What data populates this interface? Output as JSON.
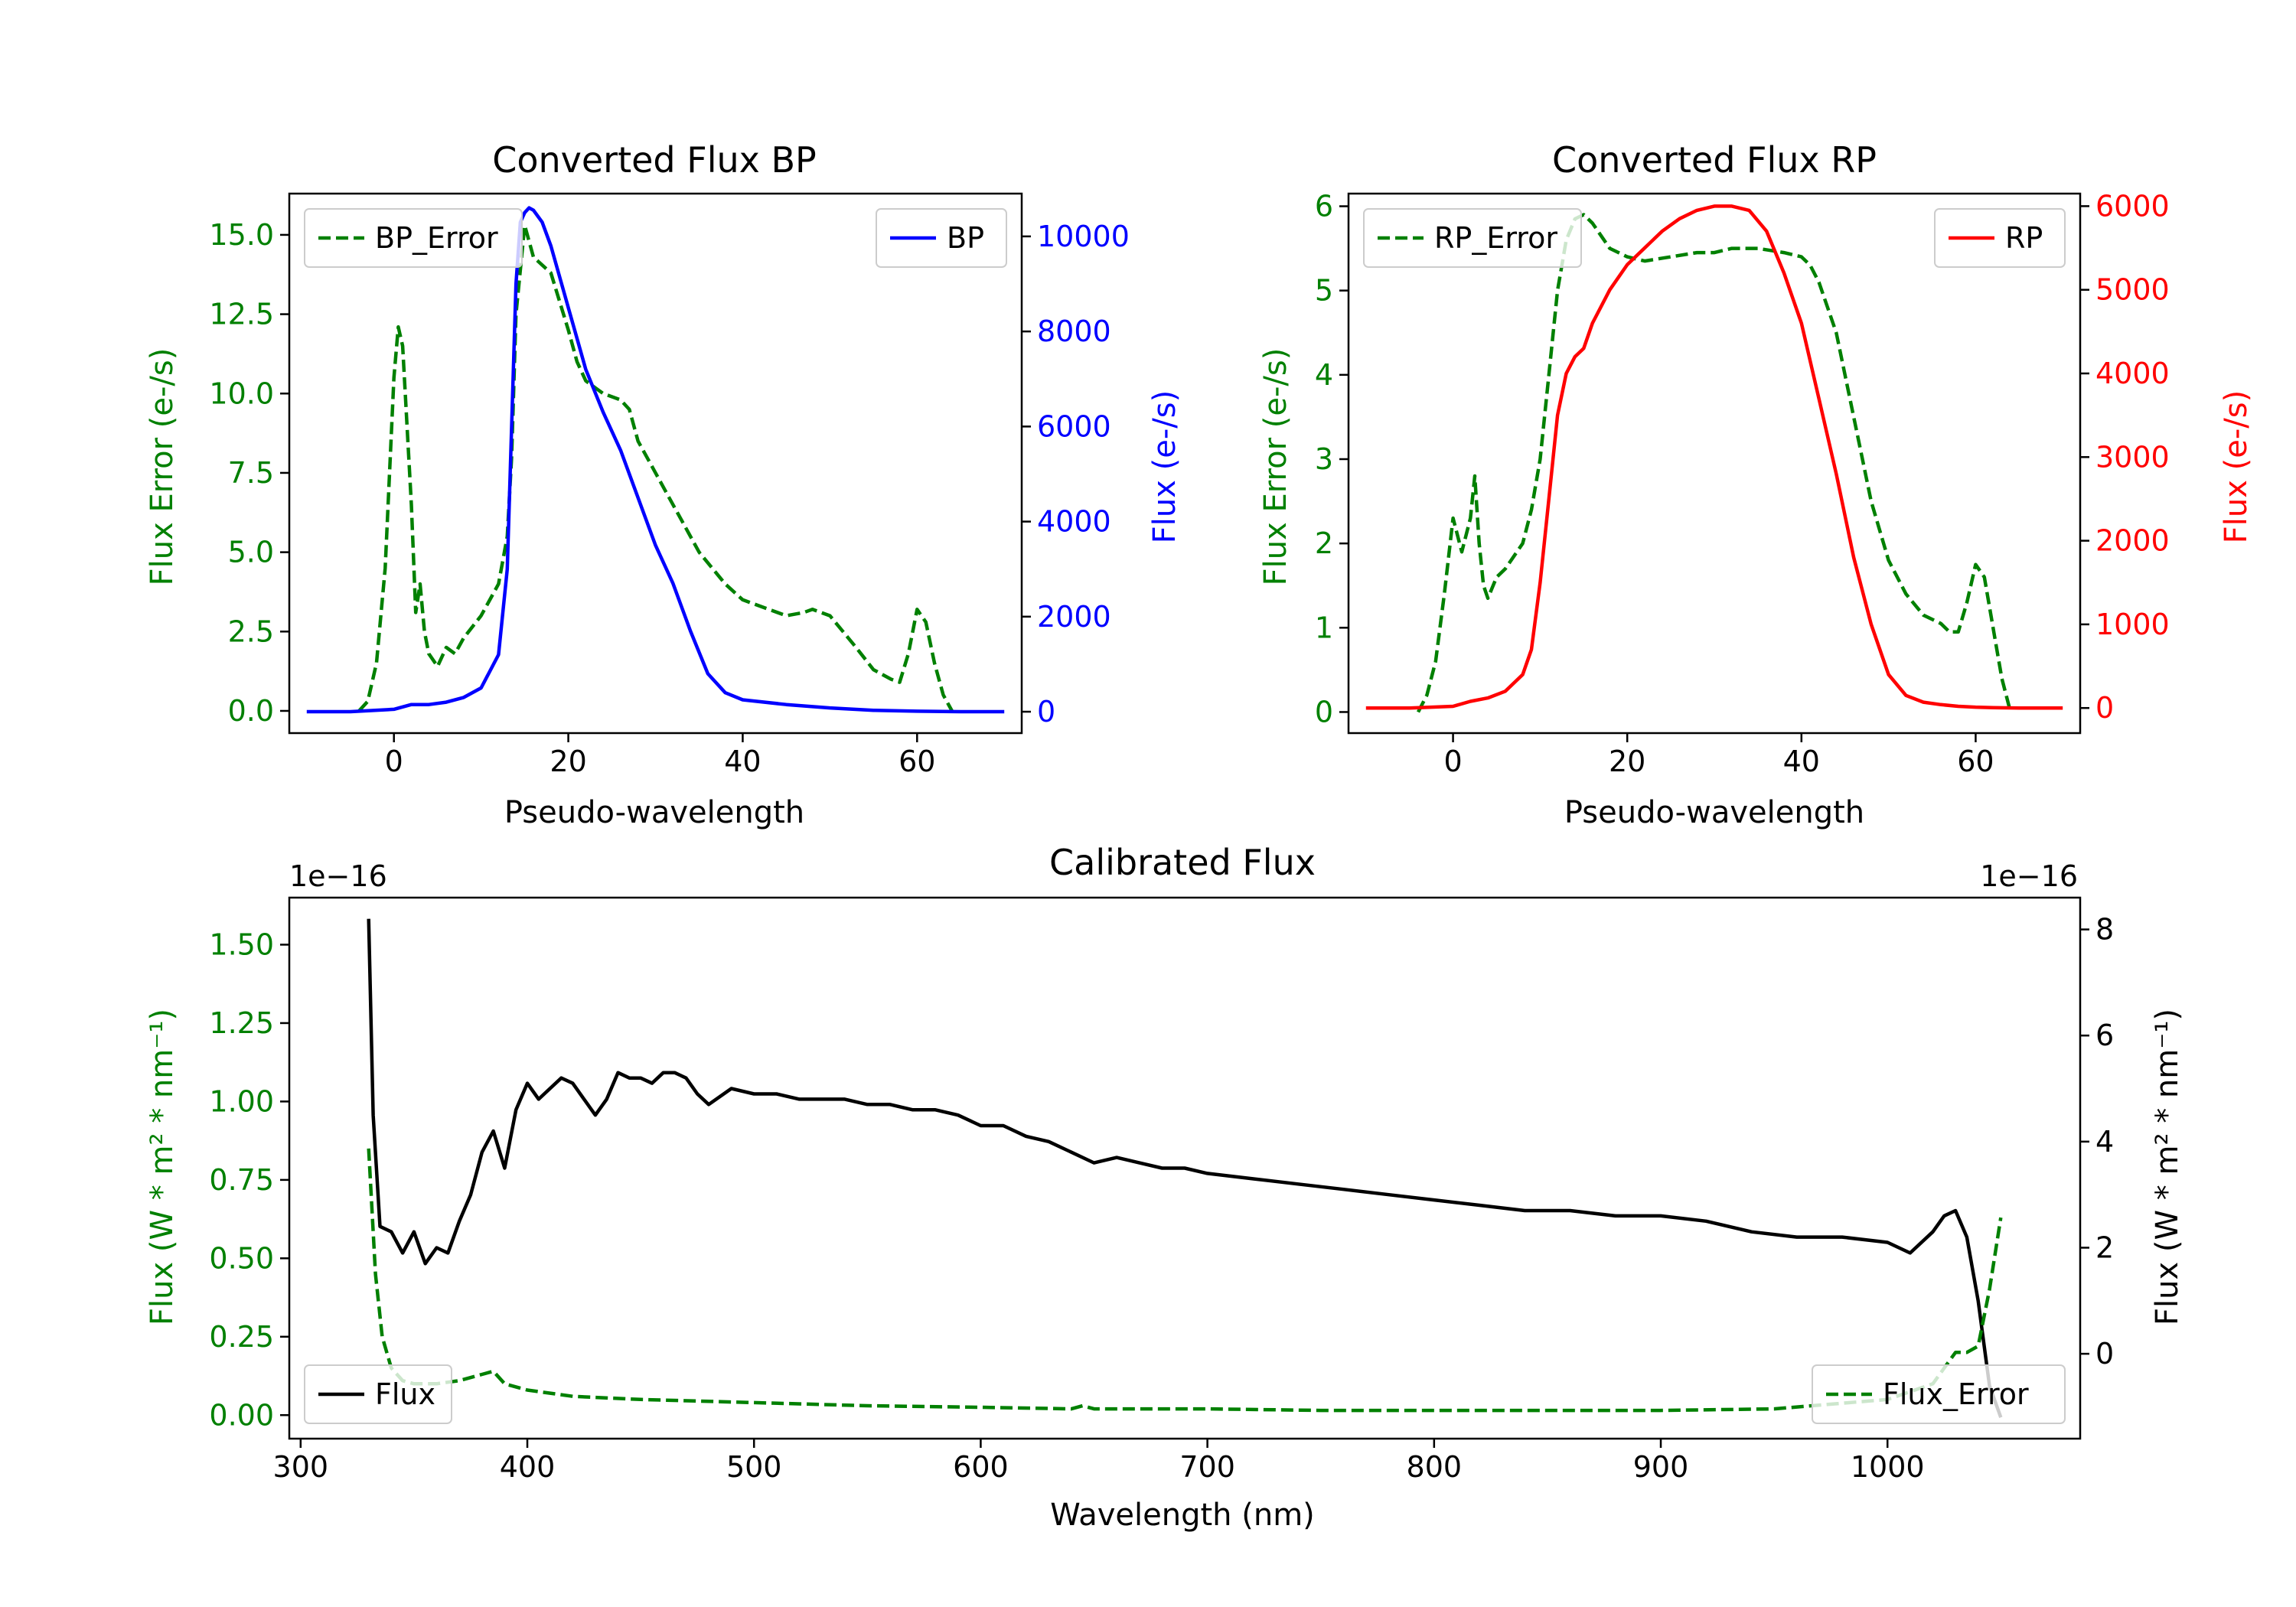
{
  "chart_data": [
    {
      "type": "line",
      "title": "Converted Flux BP",
      "xlabel": "Pseudo-wavelength",
      "xlim": [
        -12,
        72
      ],
      "xticks": [
        "0",
        "20",
        "40",
        "60"
      ],
      "left_axis": {
        "label": "Flux Error (e-/s)",
        "color": "#008000",
        "ylim": [
          -0.7,
          16.3
        ],
        "ticks": [
          "0.0",
          "2.5",
          "5.0",
          "7.5",
          "10.0",
          "12.5",
          "15.0"
        ]
      },
      "right_axis": {
        "label": "Flux (e-/s)",
        "color": "#0000ff",
        "ylim": [
          -450,
          10900
        ],
        "ticks": [
          "0",
          "2000",
          "4000",
          "6000",
          "8000",
          "10000"
        ]
      },
      "series": [
        {
          "name": "BP_Error",
          "axis": "left",
          "style": "dashed",
          "color": "#008000",
          "legend_position": "upper left",
          "x": [
            -4,
            -3,
            -2,
            -1,
            0,
            0.5,
            1,
            2,
            2.5,
            3,
            3.5,
            4,
            5,
            6,
            7,
            8,
            10,
            12,
            13,
            13.5,
            14,
            15,
            16,
            18,
            20,
            21,
            22,
            24,
            26,
            27,
            28,
            30,
            31,
            33,
            35,
            38,
            40,
            43,
            45,
            47,
            48,
            50,
            53,
            55,
            57,
            58,
            59,
            60,
            61,
            62,
            63,
            64
          ],
          "y": [
            0,
            0.3,
            1.5,
            4.5,
            10.5,
            12.1,
            11.5,
            6.5,
            3.1,
            4.0,
            2.5,
            1.8,
            1.4,
            2.0,
            1.8,
            2.3,
            3.0,
            4.0,
            5.5,
            8.0,
            12.5,
            15.3,
            14.3,
            13.8,
            12.0,
            11.0,
            10.4,
            10.0,
            9.8,
            9.5,
            8.5,
            7.5,
            7.0,
            6.0,
            5.0,
            4.0,
            3.5,
            3.2,
            3.0,
            3.1,
            3.2,
            3.0,
            2.0,
            1.3,
            1.0,
            0.9,
            1.8,
            3.2,
            2.8,
            1.5,
            0.5,
            0
          ]
        },
        {
          "name": "BP",
          "axis": "right",
          "style": "solid",
          "color": "#0000ff",
          "legend_position": "upper right",
          "x": [
            -10,
            -5,
            0,
            2,
            4,
            6,
            8,
            10,
            12,
            13,
            13.5,
            14,
            14.5,
            15,
            15.5,
            16,
            17,
            18,
            20,
            22,
            24,
            26,
            28,
            30,
            32,
            34,
            36,
            38,
            40,
            45,
            50,
            55,
            60,
            65,
            70
          ],
          "y": [
            0,
            0,
            50,
            150,
            150,
            200,
            300,
            500,
            1200,
            3000,
            6000,
            9000,
            10300,
            10500,
            10600,
            10550,
            10300,
            9800,
            8500,
            7200,
            6300,
            5500,
            4500,
            3500,
            2700,
            1700,
            800,
            400,
            250,
            150,
            80,
            30,
            10,
            0,
            0
          ]
        }
      ],
      "legend": [
        "BP_Error",
        "BP"
      ]
    },
    {
      "type": "line",
      "title": "Converted Flux RP",
      "xlabel": "Pseudo-wavelength",
      "xlim": [
        -12,
        72
      ],
      "xticks": [
        "0",
        "20",
        "40",
        "60"
      ],
      "left_axis": {
        "label": "Flux Error (e-/s)",
        "color": "#008000",
        "ylim": [
          -0.25,
          6.15
        ],
        "ticks": [
          "0",
          "1",
          "2",
          "3",
          "4",
          "5",
          "6"
        ]
      },
      "right_axis": {
        "label": "Flux (e-/s)",
        "color": "#ff0000",
        "ylim": [
          -300,
          6150
        ],
        "ticks": [
          "0",
          "1000",
          "2000",
          "3000",
          "4000",
          "5000",
          "6000"
        ]
      },
      "series": [
        {
          "name": "RP_Error",
          "axis": "left",
          "style": "dashed",
          "color": "#008000",
          "legend_position": "upper left",
          "x": [
            -4,
            -3,
            -2,
            -1,
            0,
            1,
            2,
            2.5,
            3,
            3.5,
            4,
            5,
            6,
            8,
            9,
            10,
            11,
            12,
            13,
            14,
            15,
            16,
            18,
            20,
            22,
            25,
            28,
            30,
            32,
            35,
            38,
            40,
            41,
            42,
            44,
            46,
            48,
            50,
            52,
            54,
            56,
            57,
            58,
            59,
            60,
            61,
            62,
            63,
            64
          ],
          "y": [
            0,
            0.2,
            0.6,
            1.4,
            2.3,
            1.9,
            2.3,
            2.8,
            2.0,
            1.5,
            1.35,
            1.6,
            1.7,
            2.0,
            2.4,
            3.0,
            4.0,
            5.0,
            5.6,
            5.85,
            5.9,
            5.8,
            5.5,
            5.4,
            5.35,
            5.4,
            5.45,
            5.45,
            5.5,
            5.5,
            5.45,
            5.4,
            5.3,
            5.1,
            4.5,
            3.5,
            2.5,
            1.8,
            1.4,
            1.15,
            1.05,
            0.95,
            0.95,
            1.3,
            1.75,
            1.6,
            1.0,
            0.4,
            0
          ]
        },
        {
          "name": "RP",
          "axis": "right",
          "style": "solid",
          "color": "#ff0000",
          "legend_position": "upper right",
          "x": [
            -10,
            -5,
            0,
            2,
            4,
            6,
            8,
            9,
            10,
            11,
            12,
            13,
            14,
            15,
            16,
            18,
            20,
            22,
            24,
            26,
            28,
            30,
            32,
            34,
            36,
            38,
            40,
            42,
            44,
            46,
            48,
            50,
            52,
            54,
            56,
            58,
            60,
            62,
            65,
            70
          ],
          "y": [
            0,
            0,
            20,
            80,
            120,
            200,
            400,
            700,
            1500,
            2500,
            3500,
            4000,
            4200,
            4300,
            4600,
            5000,
            5300,
            5500,
            5700,
            5850,
            5950,
            6000,
            6000,
            5950,
            5700,
            5200,
            4600,
            3700,
            2800,
            1800,
            1000,
            400,
            150,
            70,
            40,
            20,
            10,
            5,
            0,
            0
          ]
        }
      ],
      "legend": [
        "RP_Error",
        "RP"
      ]
    },
    {
      "type": "line",
      "title": "Calibrated Flux",
      "xlabel": "Wavelength (nm)",
      "xlim": [
        295,
        1085
      ],
      "xticks": [
        "300",
        "400",
        "500",
        "600",
        "700",
        "800",
        "900",
        "1000"
      ],
      "left_axis": {
        "label": "Flux (W * m² * nm⁻¹)",
        "color": "#008000",
        "offset_text": "1e−16",
        "ylim": [
          -0.075,
          1.65
        ],
        "ticks": [
          "0.00",
          "0.25",
          "0.50",
          "0.75",
          "1.00",
          "1.25",
          "1.50"
        ]
      },
      "right_axis": {
        "label": "Flux (W * m² * nm⁻¹)",
        "color": "#000000",
        "offset_text": "1e−16",
        "ylim": [
          -1.6,
          8.6
        ],
        "ticks": [
          "0",
          "2",
          "4",
          "6",
          "8"
        ]
      },
      "series": [
        {
          "name": "Flux",
          "axis": "right",
          "style": "solid",
          "color": "#000000",
          "legend_position": "lower left",
          "x": [
            330,
            332,
            335,
            340,
            345,
            350,
            355,
            360,
            365,
            370,
            375,
            380,
            385,
            390,
            395,
            400,
            405,
            410,
            415,
            420,
            425,
            430,
            435,
            440,
            445,
            450,
            455,
            460,
            465,
            470,
            475,
            480,
            490,
            500,
            510,
            520,
            530,
            540,
            550,
            560,
            570,
            580,
            590,
            600,
            610,
            620,
            630,
            640,
            650,
            660,
            670,
            680,
            690,
            700,
            720,
            740,
            760,
            780,
            800,
            820,
            840,
            860,
            880,
            900,
            920,
            940,
            960,
            980,
            1000,
            1010,
            1020,
            1025,
            1030,
            1035,
            1040,
            1045,
            1050
          ],
          "y": [
            8.2,
            4.5,
            2.4,
            2.3,
            1.9,
            2.3,
            1.7,
            2.0,
            1.9,
            2.5,
            3.0,
            3.8,
            4.2,
            3.5,
            4.6,
            5.1,
            4.8,
            5.0,
            5.2,
            5.1,
            4.8,
            4.5,
            4.8,
            5.3,
            5.2,
            5.2,
            5.1,
            5.3,
            5.3,
            5.2,
            4.9,
            4.7,
            5.0,
            4.9,
            4.9,
            4.8,
            4.8,
            4.8,
            4.7,
            4.7,
            4.6,
            4.6,
            4.5,
            4.3,
            4.3,
            4.1,
            4.0,
            3.8,
            3.6,
            3.7,
            3.6,
            3.5,
            3.5,
            3.4,
            3.3,
            3.2,
            3.1,
            3.0,
            2.9,
            2.8,
            2.7,
            2.7,
            2.6,
            2.6,
            2.5,
            2.3,
            2.2,
            2.2,
            2.1,
            1.9,
            2.3,
            2.6,
            2.7,
            2.2,
            1.0,
            -0.6,
            -1.2
          ]
        },
        {
          "name": "Flux_Error",
          "axis": "left",
          "style": "dashed",
          "color": "#008000",
          "legend_position": "lower right",
          "x": [
            330,
            333,
            336,
            340,
            345,
            350,
            360,
            370,
            380,
            385,
            390,
            400,
            420,
            450,
            500,
            550,
            600,
            640,
            645,
            650,
            700,
            750,
            800,
            850,
            900,
            950,
            1000,
            1020,
            1030,
            1035,
            1040,
            1045,
            1050
          ],
          "y": [
            0.85,
            0.45,
            0.25,
            0.15,
            0.11,
            0.1,
            0.1,
            0.11,
            0.13,
            0.14,
            0.1,
            0.08,
            0.06,
            0.05,
            0.04,
            0.03,
            0.025,
            0.02,
            0.03,
            0.02,
            0.02,
            0.015,
            0.015,
            0.015,
            0.015,
            0.02,
            0.05,
            0.1,
            0.2,
            0.2,
            0.22,
            0.4,
            0.63
          ]
        }
      ],
      "legend": [
        "Flux",
        "Flux_Error"
      ]
    }
  ]
}
